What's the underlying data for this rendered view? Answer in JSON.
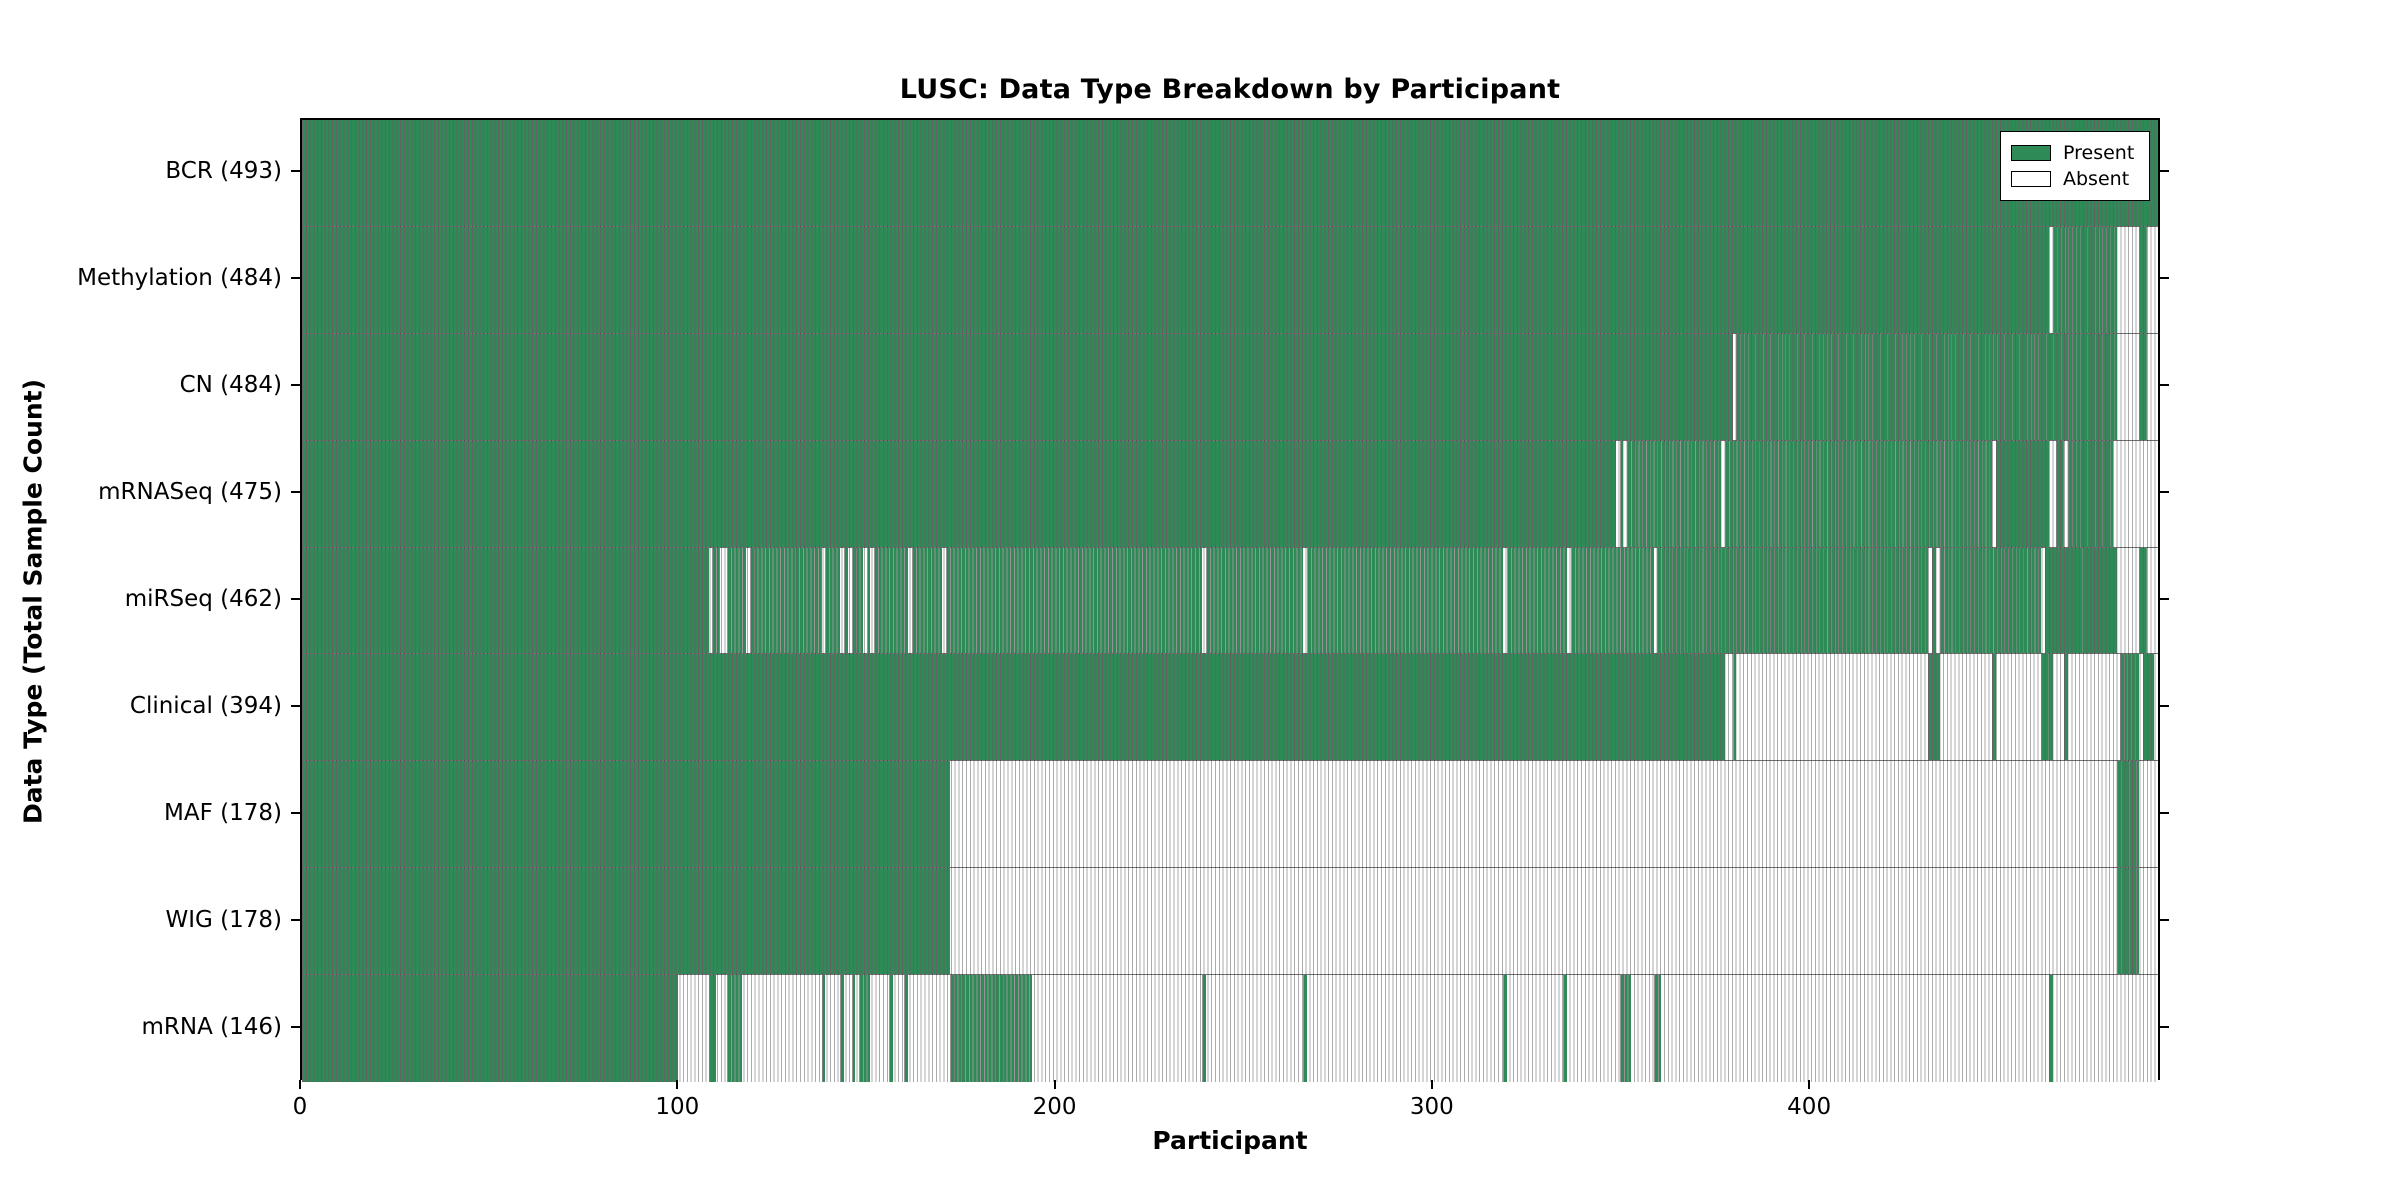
{
  "title": "LUSC: Data Type Breakdown by Participant",
  "axes": {
    "xlabel": "Participant",
    "ylabel": "Data Type (Total Sample Count)",
    "x_tick_labels": [
      "0",
      "100",
      "200",
      "300",
      "400"
    ]
  },
  "legend": {
    "present_label": "Present",
    "absent_label": "Absent"
  },
  "colors": {
    "present_fill": "#2e8b57",
    "present_edge": "#1c5c38",
    "absent_fill": "#ffffff",
    "absent_edge": "#ababab",
    "text": "#000000"
  },
  "chart_data": {
    "type": "heatmap",
    "title": "LUSC: Data Type Breakdown by Participant",
    "xlabel": "Participant",
    "ylabel": "Data Type (Total Sample Count)",
    "x_range": [
      0,
      493
    ],
    "x_ticks": [
      0,
      100,
      200,
      300,
      400
    ],
    "value_encoding": {
      "present": "green filled column",
      "absent": "white column"
    },
    "legend_entries": [
      "Present",
      "Absent"
    ],
    "rows": [
      {
        "label": "BCR (493)",
        "name": "BCR",
        "total_sample_count": 493,
        "present_runs": [
          [
            0,
            493
          ]
        ]
      },
      {
        "label": "Methylation (484)",
        "name": "Methylation",
        "total_sample_count": 484,
        "present_runs": [
          [
            0,
            464
          ],
          [
            465,
            482
          ],
          [
            488,
            490
          ]
        ]
      },
      {
        "label": "CN (484)",
        "name": "CN",
        "total_sample_count": 484,
        "present_runs": [
          [
            0,
            380
          ],
          [
            381,
            482
          ],
          [
            488,
            490
          ]
        ]
      },
      {
        "label": "mRNASeq (475)",
        "name": "mRNASeq",
        "total_sample_count": 475,
        "present_runs": [
          [
            0,
            349
          ],
          [
            350,
            351
          ],
          [
            352,
            377
          ],
          [
            378,
            449
          ],
          [
            450,
            464
          ],
          [
            466,
            468
          ],
          [
            469,
            481
          ]
        ]
      },
      {
        "label": "miRSeq (462)",
        "name": "miRSeq",
        "total_sample_count": 462,
        "present_runs": [
          [
            0,
            108
          ],
          [
            109,
            111
          ],
          [
            113,
            118
          ],
          [
            119,
            138
          ],
          [
            139,
            143
          ],
          [
            144,
            145
          ],
          [
            146,
            149
          ],
          [
            150,
            151
          ],
          [
            152,
            161
          ],
          [
            162,
            170
          ],
          [
            171,
            239
          ],
          [
            240,
            266
          ],
          [
            267,
            319
          ],
          [
            320,
            336
          ],
          [
            337,
            359
          ],
          [
            360,
            432
          ],
          [
            433,
            434
          ],
          [
            435,
            462
          ],
          [
            463,
            482
          ],
          [
            488,
            490
          ]
        ]
      },
      {
        "label": "Clinical (394)",
        "name": "Clinical",
        "total_sample_count": 394,
        "present_runs": [
          [
            0,
            378
          ],
          [
            380,
            381
          ],
          [
            432,
            435
          ],
          [
            449,
            450
          ],
          [
            462,
            465
          ],
          [
            468,
            469
          ],
          [
            483,
            488
          ],
          [
            489,
            492
          ]
        ]
      },
      {
        "label": "MAF (178)",
        "name": "MAF",
        "total_sample_count": 178,
        "present_runs": [
          [
            0,
            172
          ],
          [
            482,
            488
          ]
        ]
      },
      {
        "label": "WIG (178)",
        "name": "WIG",
        "total_sample_count": 178,
        "present_runs": [
          [
            0,
            172
          ],
          [
            482,
            488
          ]
        ]
      },
      {
        "label": "mRNA (146)",
        "name": "mRNA",
        "total_sample_count": 146,
        "present_runs": [
          [
            0,
            100
          ],
          [
            108,
            110
          ],
          [
            113,
            117
          ],
          [
            138,
            139
          ],
          [
            143,
            144
          ],
          [
            146,
            147
          ],
          [
            148,
            151
          ],
          [
            156,
            157
          ],
          [
            160,
            161
          ],
          [
            172,
            194
          ],
          [
            239,
            240
          ],
          [
            266,
            267
          ],
          [
            319,
            320
          ],
          [
            335,
            336
          ],
          [
            350,
            353
          ],
          [
            359,
            361
          ],
          [
            464,
            465
          ]
        ]
      }
    ]
  }
}
